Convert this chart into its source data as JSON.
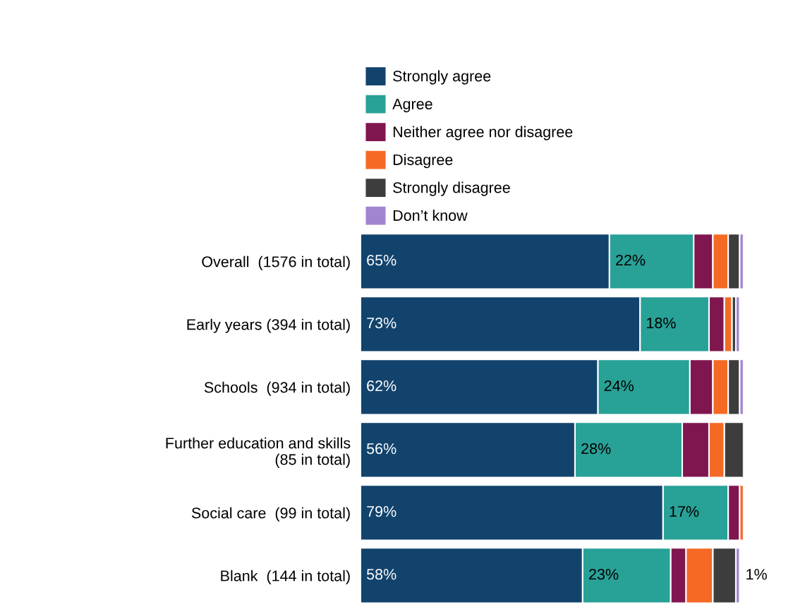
{
  "chart_data": {
    "type": "bar",
    "orientation": "horizontal",
    "stacked": true,
    "legend": "top",
    "grid": false,
    "tick_labels": "y",
    "categories": [
      "Overall  (1576 in total)",
      "Early years (394 in total)",
      "Schools  (934 in total)",
      "Further education and skills  (85 in total)",
      "Social care  (99 in total)",
      "Blank  (144 in total)"
    ],
    "series": [
      {
        "name": "Strongly agree",
        "color": "#12436d",
        "values": [
          65,
          73,
          62,
          56,
          79,
          58
        ],
        "value_labels": [
          "65%",
          "73%",
          "62%",
          "56%",
          "79%",
          "58%"
        ]
      },
      {
        "name": "Agree",
        "color": "#28a197",
        "values": [
          22,
          18,
          24,
          28,
          17,
          23
        ],
        "value_labels": [
          "22%",
          "18%",
          "24%",
          "28%",
          "17%",
          "23%"
        ]
      },
      {
        "name": "Neither agree nor disagree",
        "color": "#801650",
        "values": [
          5,
          4,
          6,
          7,
          3,
          4
        ]
      },
      {
        "name": "Disagree",
        "color": "#f46a25",
        "values": [
          4,
          2,
          4,
          4,
          1,
          7
        ]
      },
      {
        "name": "Strongly disagree",
        "color": "#3d3d3d",
        "values": [
          3,
          1,
          3,
          5,
          0,
          6
        ]
      },
      {
        "name": "Don’t know",
        "color": "#a285d1",
        "values": [
          1,
          1,
          1,
          0,
          0,
          1
        ],
        "value_labels": [
          null,
          null,
          null,
          null,
          null,
          "1%"
        ]
      }
    ]
  }
}
